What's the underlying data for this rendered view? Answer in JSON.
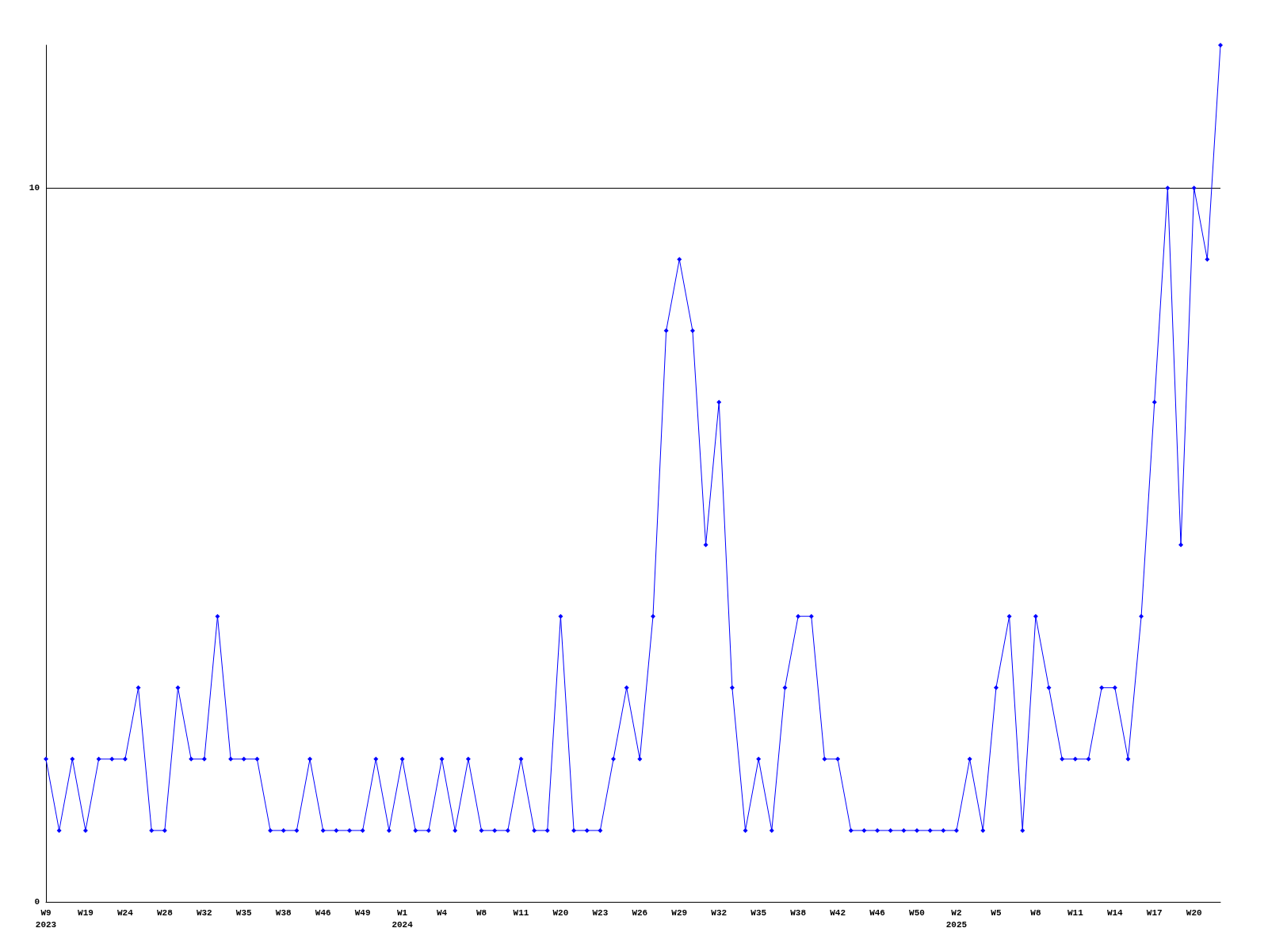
{
  "chart_data": {
    "type": "line",
    "categories": [
      "W9\n2023",
      null,
      null,
      "W19",
      null,
      null,
      "W24",
      null,
      null,
      "W28",
      null,
      null,
      "W32",
      null,
      null,
      "W35",
      null,
      null,
      "W38",
      null,
      null,
      "W46",
      null,
      null,
      "W49",
      null,
      null,
      "W1\n2024",
      null,
      null,
      "W4",
      null,
      null,
      "W8",
      null,
      null,
      "W11",
      null,
      null,
      "W20",
      null,
      null,
      "W23",
      null,
      null,
      "W26",
      null,
      null,
      "W29",
      null,
      null,
      "W32",
      null,
      null,
      "W35",
      null,
      null,
      "W38",
      null,
      null,
      "W42",
      null,
      null,
      "W46",
      null,
      null,
      "W50",
      null,
      null,
      "W2\n2025",
      null,
      null,
      "W5",
      null,
      null,
      "W8",
      null,
      null,
      "W11",
      null,
      null,
      "W14",
      null,
      null,
      "W17",
      null,
      null,
      "W20",
      null,
      null
    ],
    "series": [
      {
        "color": "#0000ff",
        "values": [
          2,
          1,
          2,
          1,
          2,
          2,
          2,
          3,
          1,
          1,
          3,
          2,
          2,
          4,
          2,
          2,
          2,
          1,
          1,
          1,
          2,
          1,
          1,
          1,
          1,
          2,
          1,
          2,
          1,
          1,
          2,
          1,
          2,
          1,
          1,
          1,
          2,
          1,
          1,
          4,
          1,
          1,
          1,
          2,
          3,
          2,
          4,
          8,
          9,
          8,
          5,
          7,
          3,
          1,
          2,
          1,
          3,
          4,
          4,
          2,
          2,
          1,
          1,
          1,
          1,
          1,
          1,
          1,
          1,
          1,
          2,
          1,
          3,
          4,
          1,
          4,
          3,
          2,
          2,
          2,
          3,
          3,
          2,
          4,
          7,
          10,
          5,
          10,
          9,
          12
        ]
      }
    ],
    "ylim": [
      0,
      12
    ],
    "yticks": [
      0,
      10
    ],
    "grid": "y",
    "marker": "diamond",
    "line_style": "solid"
  }
}
